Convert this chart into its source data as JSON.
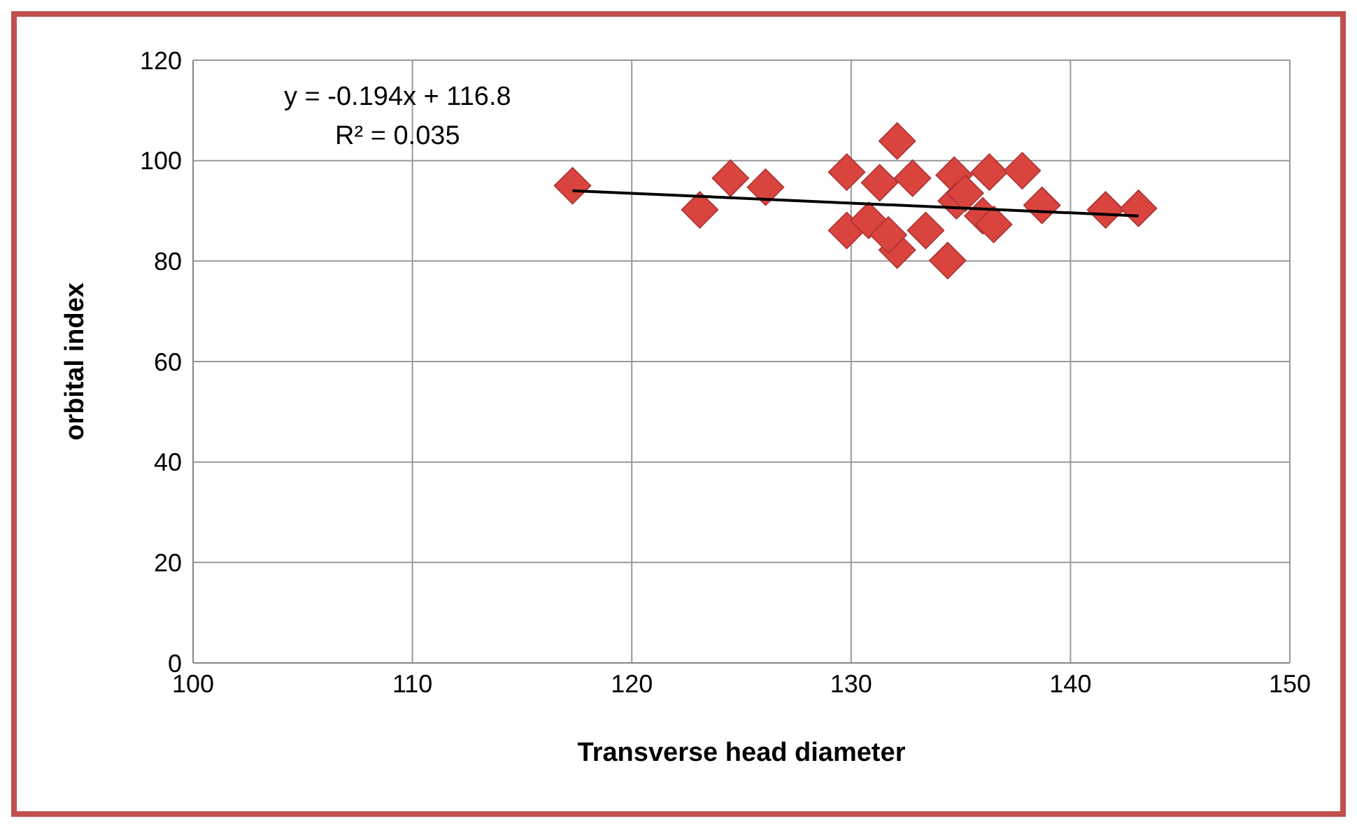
{
  "chart_data": {
    "type": "scatter",
    "xlabel": "Transverse head diameter",
    "ylabel": "orbital index",
    "annotations": [
      "y = -0.194x + 116.8",
      "R² = 0.035"
    ],
    "series": [
      {
        "color": "#d9443f",
        "marker": "diamond",
        "x": [
          117.3,
          123.1,
          124.5,
          126.1,
          129.8,
          129.8,
          130.8,
          131.3,
          132.1,
          132.8,
          132.1,
          131.7,
          133.4,
          134.4,
          134.7,
          134.8,
          136.0,
          136.3,
          137.8,
          136.5,
          138.7,
          141.6,
          143.1,
          135.2
        ],
        "values": [
          95.0,
          90.2,
          96.5,
          94.7,
          97.7,
          86.1,
          88.1,
          95.6,
          103.9,
          96.5,
          82.2,
          85.2,
          86.1,
          80.1,
          97.1,
          92.0,
          89.0,
          97.7,
          98.0,
          87.3,
          91.1,
          90.2,
          90.5,
          93.5
        ]
      },
      {
        "type": "line",
        "color": "#000000",
        "marker": "none",
        "x": [
          117.3,
          143.1
        ],
        "values": [
          94.0,
          89.0
        ]
      }
    ],
    "xlim": [
      100,
      150
    ],
    "xticks": [
      100,
      110,
      120,
      130,
      140,
      150
    ],
    "ylim": [
      0,
      120
    ],
    "yticks": [
      0,
      20,
      40,
      60,
      80,
      100,
      120
    ],
    "grid": true,
    "legend": false
  }
}
